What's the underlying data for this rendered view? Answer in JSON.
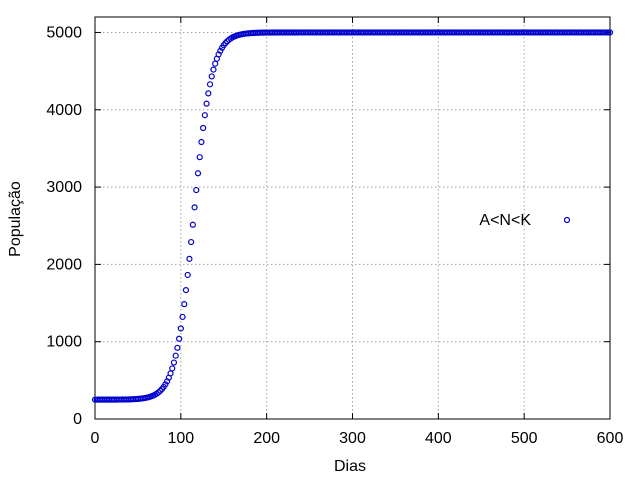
{
  "chart_data": {
    "type": "scatter",
    "title": "",
    "xlabel": "Dias",
    "ylabel": "População",
    "xlim": [
      0,
      600
    ],
    "ylim": [
      0,
      5200
    ],
    "xticks": [
      0,
      100,
      200,
      300,
      400,
      500,
      600
    ],
    "yticks": [
      0,
      1000,
      2000,
      3000,
      4000,
      5000
    ],
    "grid": true,
    "legend_position": "right",
    "marker": "open-circle",
    "series": [
      {
        "name": "A<N<K",
        "color": "#0000cc",
        "model": "logistic",
        "parameters": {
          "K": 5000,
          "midpoint_day": 115,
          "rate_per_day": 0.095,
          "floor": 250
        },
        "x_step": 2,
        "x_range": [
          0,
          600
        ]
      }
    ]
  }
}
